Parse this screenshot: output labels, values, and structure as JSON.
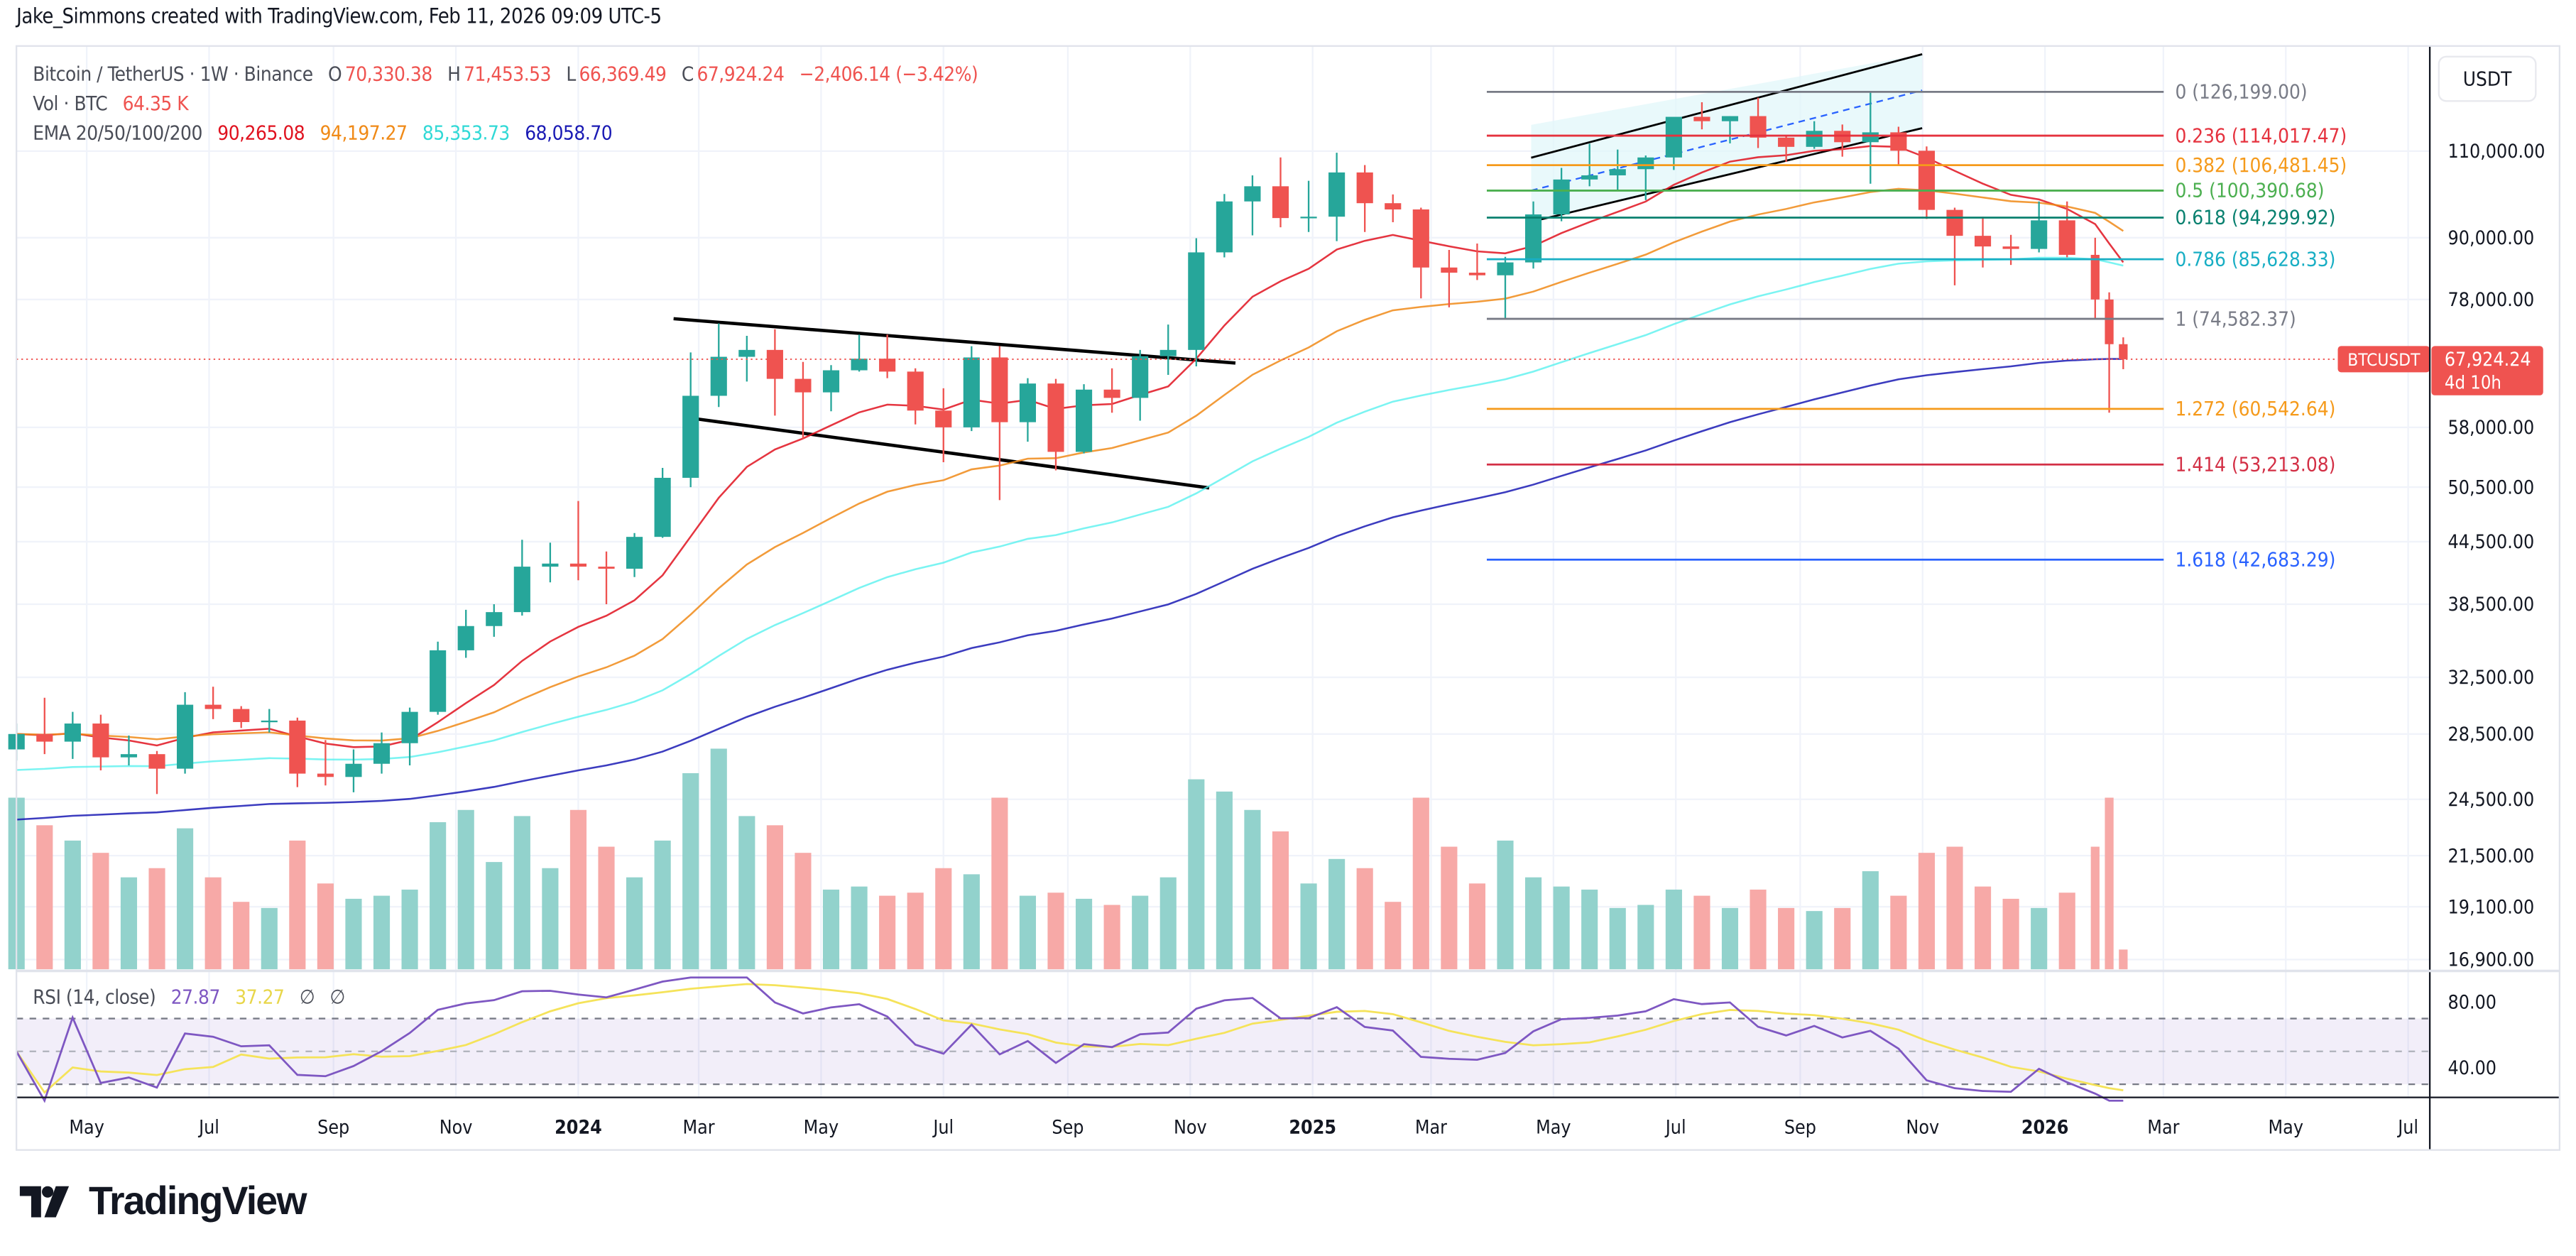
{
  "header": {
    "attribution": "Jake_Simmons created with TradingView.com, Feb 11, 2026 09:09 UTC-5"
  },
  "legend": {
    "symbol": "Bitcoin / TetherUS · 1W · Binance",
    "open_label": "O",
    "open": "70,330.38",
    "high_label": "H",
    "high": "71,453.53",
    "low_label": "L",
    "low": "66,369.49",
    "close_label": "C",
    "close": "67,924.24",
    "change": "−2,406.14 (−3.42%)",
    "vol_label": "Vol · BTC",
    "vol": "64.35 K",
    "ema_label": "EMA 20/50/100/200",
    "ema_values": [
      "90,265.08",
      "94,197.27",
      "85,353.73",
      "68,058.70"
    ],
    "ema_colors": [
      "#e0121f",
      "#f08a17",
      "#4ff0ee",
      "#1a1ab4"
    ]
  },
  "price_axis": {
    "currency_button": "USDT"
  },
  "last_price": {
    "symbol": "BTCUSDT",
    "price": "67,924.24",
    "countdown": "4d 10h",
    "color": "#ef5350"
  },
  "rsi": {
    "label": "RSI (14, close)",
    "value": "27.87",
    "ma_value": "37.27",
    "extra1": "∅",
    "extra2": "∅",
    "line_color": "#7e57c2",
    "ma_color": "#f5e35a"
  },
  "logo": {
    "text": "TradingView"
  },
  "chart_data": {
    "type": "candlestick",
    "title": "Bitcoin / TetherUS · 1W · Binance",
    "y_scale": "log",
    "ylim": [
      16900,
      132000
    ],
    "grid": true,
    "y_ticks": [
      "110,000.00",
      "90,000.00",
      "78,000.00",
      "58,000.00",
      "50,500.00",
      "44,500.00",
      "38,500.00",
      "32,500.00",
      "28,500.00",
      "24,500.00",
      "21,500.00",
      "19,100.00",
      "16,900.00"
    ],
    "y_tick_values": [
      110000,
      90000,
      78000,
      58000,
      50500,
      44500,
      38500,
      32500,
      28500,
      24500,
      21500,
      19100,
      16900
    ],
    "x_ticks": [
      {
        "label": "May",
        "date": "2023-05-01",
        "bold": false
      },
      {
        "label": "Jul",
        "date": "2023-07-01",
        "bold": false
      },
      {
        "label": "Sep",
        "date": "2023-09-01",
        "bold": false
      },
      {
        "label": "Nov",
        "date": "2023-11-01",
        "bold": false
      },
      {
        "label": "2024",
        "date": "2024-01-01",
        "bold": true
      },
      {
        "label": "Mar",
        "date": "2024-03-01",
        "bold": false
      },
      {
        "label": "May",
        "date": "2024-05-01",
        "bold": false
      },
      {
        "label": "Jul",
        "date": "2024-07-01",
        "bold": false
      },
      {
        "label": "Sep",
        "date": "2024-09-01",
        "bold": false
      },
      {
        "label": "Nov",
        "date": "2024-11-01",
        "bold": false
      },
      {
        "label": "2025",
        "date": "2025-01-01",
        "bold": true
      },
      {
        "label": "Mar",
        "date": "2025-03-01",
        "bold": false
      },
      {
        "label": "May",
        "date": "2025-05-01",
        "bold": false
      },
      {
        "label": "Jul",
        "date": "2025-07-01",
        "bold": false
      },
      {
        "label": "Sep",
        "date": "2025-09-01",
        "bold": false
      },
      {
        "label": "Nov",
        "date": "2025-11-01",
        "bold": false
      },
      {
        "label": "2026",
        "date": "2026-01-01",
        "bold": true
      },
      {
        "label": "Mar",
        "date": "2026-03-01",
        "bold": false
      },
      {
        "label": "May",
        "date": "2026-05-01",
        "bold": false
      },
      {
        "label": "Jul",
        "date": "2026-07-01",
        "bold": false
      }
    ],
    "candle_fields": [
      "date",
      "open_k",
      "high_k",
      "low_k",
      "close_k",
      "volume_k_btc"
    ],
    "candles": [
      [
        "2023-03-27",
        27.5,
        29.2,
        26.8,
        28.5,
        560
      ],
      [
        "2023-04-10",
        28.5,
        31.0,
        27.2,
        28.0,
        470
      ],
      [
        "2023-04-24",
        28.0,
        30.0,
        26.9,
        29.2,
        420
      ],
      [
        "2023-05-08",
        29.2,
        29.8,
        26.2,
        27.0,
        380
      ],
      [
        "2023-05-22",
        27.0,
        28.4,
        26.5,
        27.2,
        300
      ],
      [
        "2023-06-05",
        27.2,
        27.4,
        24.8,
        26.3,
        330
      ],
      [
        "2023-06-19",
        26.3,
        31.4,
        26.0,
        30.5,
        460
      ],
      [
        "2023-07-03",
        30.5,
        31.8,
        29.5,
        30.2,
        300
      ],
      [
        "2023-07-17",
        30.2,
        30.4,
        28.9,
        29.3,
        220
      ],
      [
        "2023-07-31",
        29.3,
        30.2,
        28.6,
        29.4,
        200
      ],
      [
        "2023-08-14",
        29.4,
        29.6,
        25.2,
        26.0,
        420
      ],
      [
        "2023-08-28",
        26.0,
        28.1,
        25.3,
        25.8,
        280
      ],
      [
        "2023-09-11",
        25.8,
        27.5,
        24.9,
        26.6,
        230
      ],
      [
        "2023-09-25",
        26.6,
        28.6,
        26.0,
        27.9,
        240
      ],
      [
        "2023-10-09",
        27.9,
        30.3,
        26.5,
        30.0,
        260
      ],
      [
        "2023-10-23",
        30.0,
        35.3,
        29.8,
        34.6,
        480
      ],
      [
        "2023-11-06",
        34.6,
        38.0,
        34.0,
        36.6,
        520
      ],
      [
        "2023-11-20",
        36.6,
        38.5,
        35.7,
        37.8,
        350
      ],
      [
        "2023-12-04",
        37.8,
        44.7,
        37.5,
        42.0,
        500
      ],
      [
        "2023-12-18",
        42.0,
        44.4,
        40.5,
        42.3,
        330
      ],
      [
        "2024-01-01",
        42.3,
        48.9,
        40.7,
        42.0,
        520
      ],
      [
        "2024-01-15",
        42.0,
        43.5,
        38.5,
        41.8,
        400
      ],
      [
        "2024-01-29",
        41.8,
        45.4,
        41.0,
        45.0,
        300
      ],
      [
        "2024-02-12",
        45.0,
        52.8,
        44.9,
        51.6,
        420
      ],
      [
        "2024-02-26",
        51.6,
        69.0,
        50.5,
        62.4,
        640
      ],
      [
        "2024-03-11",
        62.4,
        73.8,
        60.8,
        68.3,
        720
      ],
      [
        "2024-03-25",
        68.3,
        71.7,
        64.5,
        69.4,
        500
      ],
      [
        "2024-04-08",
        69.4,
        72.8,
        59.6,
        64.9,
        470
      ],
      [
        "2024-04-22",
        64.9,
        67.5,
        56.5,
        62.9,
        380
      ],
      [
        "2024-05-06",
        62.9,
        67.0,
        60.2,
        66.2,
        260
      ],
      [
        "2024-05-20",
        66.2,
        71.9,
        66.0,
        68.0,
        270
      ],
      [
        "2024-06-03",
        68.0,
        71.9,
        65.0,
        66.0,
        240
      ],
      [
        "2024-06-17",
        66.0,
        66.5,
        58.4,
        60.3,
        250
      ],
      [
        "2024-07-01",
        60.3,
        63.5,
        53.5,
        58.0,
        330
      ],
      [
        "2024-07-15",
        58.0,
        70.0,
        57.5,
        68.2,
        310
      ],
      [
        "2024-07-29",
        68.2,
        70.0,
        49.0,
        58.7,
        560
      ],
      [
        "2024-08-12",
        58.7,
        65.0,
        56.1,
        64.2,
        240
      ],
      [
        "2024-08-26",
        64.2,
        64.9,
        52.5,
        54.8,
        250
      ],
      [
        "2024-09-09",
        54.8,
        64.1,
        54.6,
        63.3,
        230
      ],
      [
        "2024-09-23",
        63.3,
        66.5,
        60.0,
        62.1,
        210
      ],
      [
        "2024-10-07",
        62.1,
        69.4,
        58.9,
        68.4,
        240
      ],
      [
        "2024-10-21",
        68.4,
        73.6,
        65.5,
        69.4,
        300
      ],
      [
        "2024-11-04",
        69.4,
        89.9,
        66.8,
        87.0,
        620
      ],
      [
        "2024-11-18",
        87.0,
        99.6,
        86.0,
        97.9,
        580
      ],
      [
        "2024-12-02",
        97.9,
        104.0,
        90.5,
        101.4,
        520
      ],
      [
        "2024-12-16",
        101.4,
        108.4,
        92.2,
        94.2,
        450
      ],
      [
        "2024-12-30",
        94.2,
        102.7,
        91.2,
        94.5,
        280
      ],
      [
        "2025-01-13",
        94.5,
        109.6,
        89.3,
        104.7,
        360
      ],
      [
        "2025-01-27",
        104.7,
        106.5,
        91.2,
        97.5,
        330
      ],
      [
        "2025-02-10",
        97.5,
        99.5,
        93.3,
        96.1,
        220
      ],
      [
        "2025-02-24",
        96.1,
        96.5,
        78.2,
        84.0,
        560
      ],
      [
        "2025-03-10",
        84.0,
        87.5,
        76.6,
        83.0,
        400
      ],
      [
        "2025-03-24",
        83.0,
        88.8,
        81.6,
        82.5,
        280
      ],
      [
        "2025-04-07",
        82.5,
        86.1,
        74.5,
        85.0,
        420
      ],
      [
        "2025-04-21",
        85.0,
        97.9,
        83.8,
        95.0,
        300
      ],
      [
        "2025-05-05",
        95.0,
        105.8,
        93.5,
        103.0,
        270
      ],
      [
        "2025-05-19",
        103.0,
        111.9,
        101.4,
        104.0,
        260
      ],
      [
        "2025-06-02",
        104.0,
        110.4,
        100.4,
        105.5,
        200
      ],
      [
        "2025-06-16",
        105.5,
        108.9,
        98.2,
        108.4,
        210
      ],
      [
        "2025-06-30",
        108.4,
        119.0,
        105.3,
        119.1,
        260
      ],
      [
        "2025-07-14",
        119.1,
        123.2,
        115.7,
        117.9,
        240
      ],
      [
        "2025-07-28",
        117.9,
        119.3,
        112.0,
        119.3,
        200
      ],
      [
        "2025-08-11",
        119.3,
        124.5,
        110.8,
        113.5,
        260
      ],
      [
        "2025-08-25",
        113.5,
        114.0,
        107.3,
        111.1,
        200
      ],
      [
        "2025-09-08",
        111.1,
        117.9,
        110.6,
        115.3,
        190
      ],
      [
        "2025-09-22",
        115.3,
        117.0,
        108.6,
        112.3,
        200
      ],
      [
        "2025-10-06",
        112.3,
        126.2,
        102.0,
        114.9,
        320
      ],
      [
        "2025-10-20",
        114.9,
        116.4,
        106.3,
        110.1,
        240
      ],
      [
        "2025-11-03",
        110.1,
        111.2,
        94.0,
        96.0,
        380
      ],
      [
        "2025-11-17",
        96.0,
        96.5,
        80.6,
        90.4,
        400
      ],
      [
        "2025-12-01",
        90.4,
        94.5,
        84.0,
        88.2,
        270
      ],
      [
        "2025-12-15",
        88.2,
        90.6,
        84.5,
        87.7,
        230
      ],
      [
        "2025-12-29",
        87.7,
        97.9,
        87.0,
        93.7,
        200
      ],
      [
        "2026-01-12",
        93.7,
        97.9,
        86.0,
        86.5,
        250
      ],
      [
        "2026-01-26",
        86.5,
        90.0,
        74.5,
        78.0,
        400
      ],
      [
        "2026-02-02",
        78.0,
        79.3,
        60.0,
        70.33,
        560
      ],
      [
        "2026-02-09",
        70.33,
        71.45,
        66.37,
        67.92,
        64.35
      ]
    ],
    "up_color": "#26a69a",
    "down_color": "#ef5350",
    "ema_periods": [
      20,
      50,
      100,
      200
    ],
    "fib_levels": [
      {
        "ratio": "0",
        "price": 126199.0,
        "label": "0 (126,199.00)",
        "color": "#787b86"
      },
      {
        "ratio": "0.236",
        "price": 114017.47,
        "label": "0.236 (114,017.47)",
        "color": "#e5323e"
      },
      {
        "ratio": "0.382",
        "price": 106481.45,
        "label": "0.382 (106,481.45)",
        "color": "#f59a1b"
      },
      {
        "ratio": "0.5",
        "price": 100390.68,
        "label": "0.5 (100,390.68)",
        "color": "#4caf50"
      },
      {
        "ratio": "0.618",
        "price": 94299.92,
        "label": "0.618 (94,299.92)",
        "color": "#08806f"
      },
      {
        "ratio": "0.786",
        "price": 85628.33,
        "label": "0.786 (85,628.33)",
        "color": "#18aec4"
      },
      {
        "ratio": "1",
        "price": 74582.37,
        "label": "1 (74,582.37)",
        "color": "#787b86"
      },
      {
        "ratio": "1.272",
        "price": 60542.64,
        "label": "1.272 (60,542.64)",
        "color": "#f59a1b"
      },
      {
        "ratio": "1.414",
        "price": 53213.08,
        "label": "1.414 (53,213.08)",
        "color": "#d32f45"
      },
      {
        "ratio": "1.618",
        "price": 42683.29,
        "label": "1.618 (42,683.29)",
        "color": "#2962ff"
      }
    ],
    "rsi_ticks": [
      "80.00",
      "40.00"
    ],
    "rsi_tick_values": [
      80,
      40
    ],
    "rsi_bands": [
      70,
      50,
      30
    ]
  }
}
